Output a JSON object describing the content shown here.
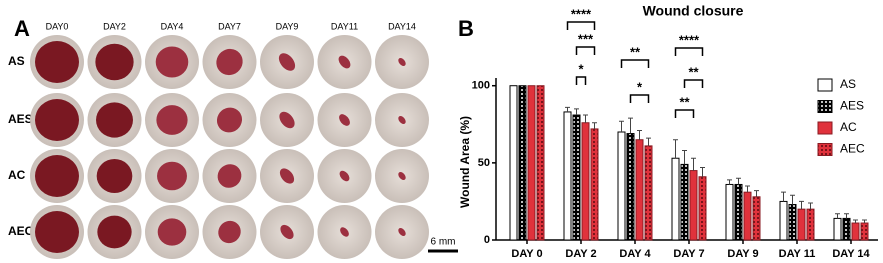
{
  "panel_a": {
    "label": "A",
    "columns": [
      "DAY0",
      "DAY2",
      "DAY4",
      "DAY7",
      "DAY9",
      "DAY11",
      "DAY14"
    ],
    "rows": [
      "AS",
      "AES",
      "AC",
      "AEC"
    ],
    "scale_bar": "6 mm"
  },
  "chart_data": {
    "type": "bar",
    "panel_label": "B",
    "title": "Wound closure",
    "y_label": "Wound Area (%)",
    "categories": [
      "DAY 0",
      "DAY 2",
      "DAY 4",
      "DAY 7",
      "DAY 9",
      "DAY 11",
      "DAY 14"
    ],
    "series": [
      {
        "name": "AS",
        "color": "#ffffff",
        "values": [
          100,
          83,
          70,
          53,
          36,
          25,
          14
        ],
        "errors": [
          0,
          3,
          7,
          12,
          3,
          6,
          3
        ]
      },
      {
        "name": "AES",
        "color": "#000000",
        "pattern": "dots",
        "values": [
          100,
          81,
          69,
          49,
          36,
          23,
          14
        ],
        "errors": [
          0,
          4,
          10,
          9,
          4,
          6,
          3
        ]
      },
      {
        "name": "AC",
        "color": "#e0323c",
        "values": [
          100,
          76,
          65,
          45,
          31,
          20,
          11
        ],
        "errors": [
          0,
          5,
          6,
          8,
          4,
          5,
          2
        ]
      },
      {
        "name": "AEC",
        "color": "#b0202a",
        "pattern": "dots",
        "values": [
          100,
          72,
          61,
          41,
          28,
          20,
          11
        ],
        "errors": [
          0,
          4,
          5,
          6,
          4,
          4,
          2
        ]
      }
    ],
    "ylim": [
      0,
      105
    ],
    "yticks": [
      0,
      50,
      100
    ],
    "annotations": [
      "****",
      "***",
      "*",
      "**",
      "*",
      "****",
      "**",
      "**"
    ]
  }
}
